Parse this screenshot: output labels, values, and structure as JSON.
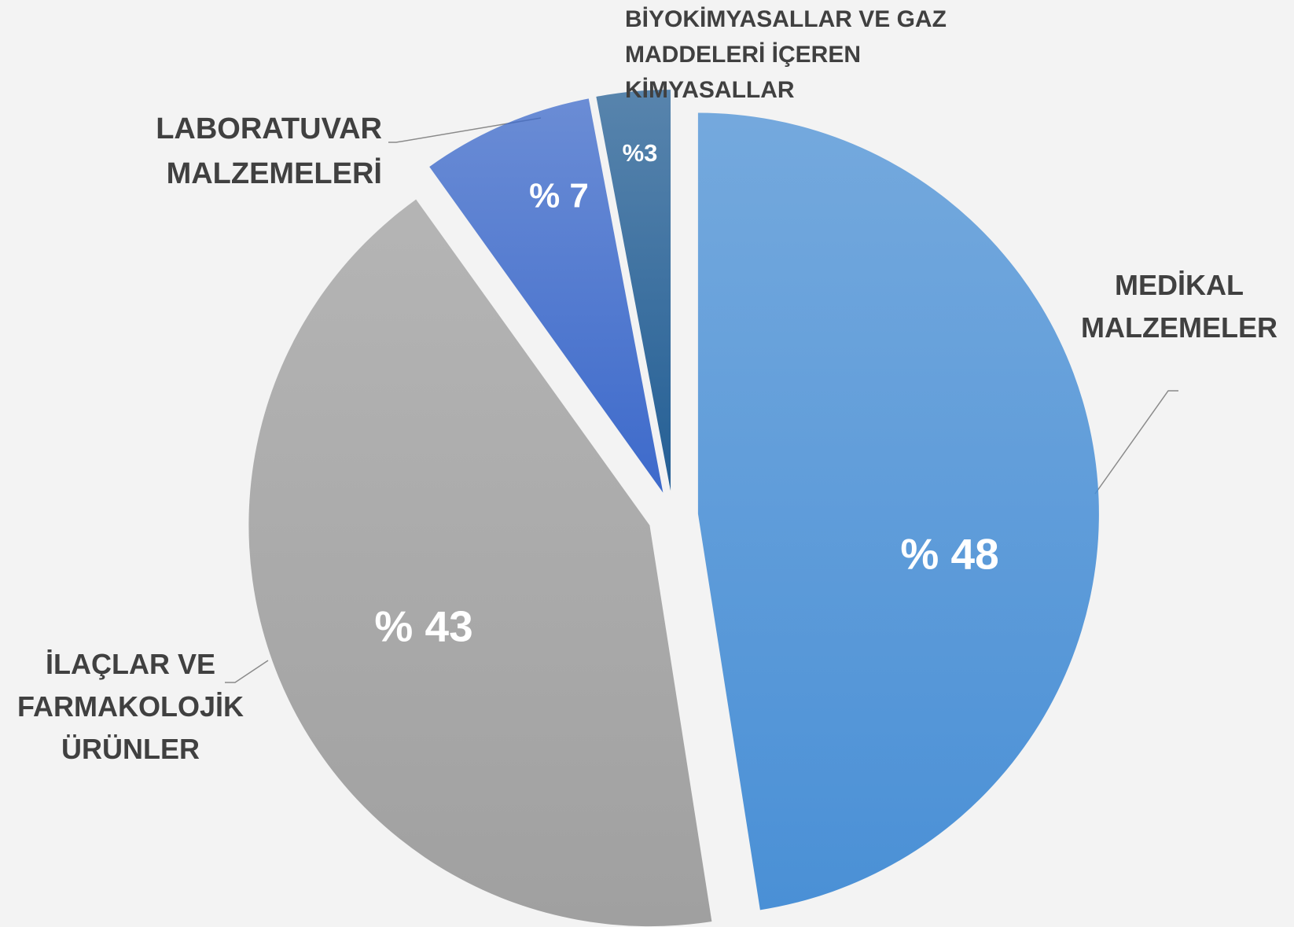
{
  "chart_data": {
    "type": "pie",
    "categories": [
      "MEDİKAL MALZEMELER",
      "İLAÇLAR VE FARMAKOLOJİK ÜRÜNLER",
      "LABORATUVAR MALZEMELERİ",
      "BİYOKİMYASALLAR VE GAZ MADDELERİ İÇEREN KİMYASALLAR"
    ],
    "values": [
      48,
      43,
      7,
      3
    ],
    "value_labels": [
      "% 48",
      "% 43",
      "% 7",
      "%3"
    ],
    "colors": [
      "#4a90d6",
      "#a0a0a0",
      "#3d6acb",
      "#245f95"
    ]
  }
}
